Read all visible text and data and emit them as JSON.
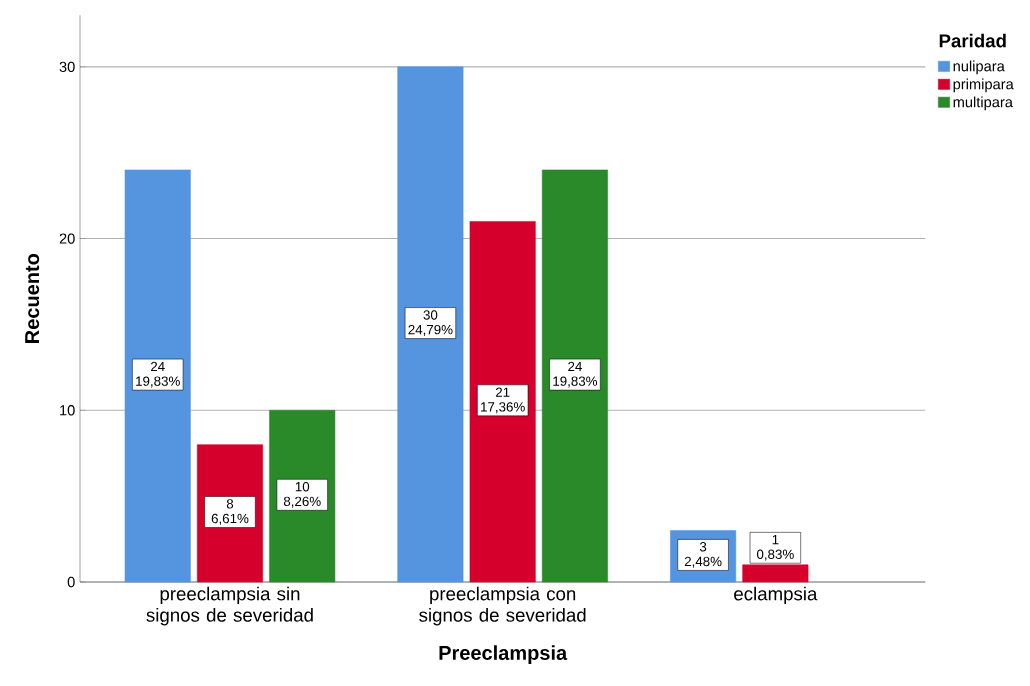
{
  "chart_data": {
    "type": "bar",
    "xlabel": "Preeclampsia",
    "ylabel": "Recuento",
    "legend_title": "Paridad",
    "categories": [
      "preeclampsia sin signos de severidad",
      "preeclampsia con signos de severidad",
      "eclampsia"
    ],
    "series": [
      {
        "name": "nulipara",
        "color": "#5595e0",
        "values": [
          24,
          30,
          3
        ],
        "value_labels": [
          "24 19,83%",
          "30 24,79%",
          "3 2,48%"
        ]
      },
      {
        "name": "primipara",
        "color": "#d5002c",
        "values": [
          8,
          21,
          1
        ],
        "value_labels": [
          "8 6,61%",
          "21 17,36%",
          "1 0,83%"
        ]
      },
      {
        "name": "multipara",
        "color": "#2a8a2a",
        "values": [
          10,
          24,
          null
        ],
        "value_labels": [
          "10 8,26%",
          "24 19,83%",
          null
        ]
      }
    ],
    "ylim": [
      0,
      33
    ],
    "yticks": [
      0,
      10,
      20,
      30
    ],
    "grid": "y",
    "legend": "top right"
  }
}
